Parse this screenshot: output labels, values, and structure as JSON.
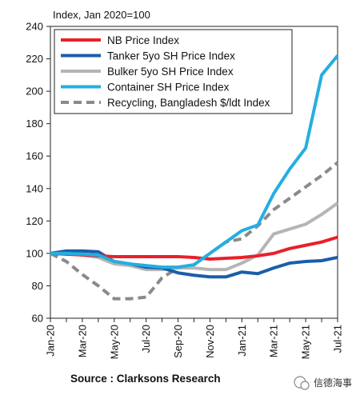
{
  "chart_data": {
    "type": "line",
    "ylabel": "Index, Jan 2020=100",
    "ylim": [
      60,
      240
    ],
    "yticks": [
      60,
      80,
      100,
      120,
      140,
      160,
      180,
      200,
      220,
      240
    ],
    "xlabels": [
      "Jan-20",
      "Mar-20",
      "May-20",
      "Jul-20",
      "Sep-20",
      "Nov-20",
      "Jan-21",
      "Mar-21",
      "May-21",
      "Jul-21"
    ],
    "x": [
      "Jan-20",
      "Feb-20",
      "Mar-20",
      "Apr-20",
      "May-20",
      "Jun-20",
      "Jul-20",
      "Aug-20",
      "Sep-20",
      "Oct-20",
      "Nov-20",
      "Dec-20",
      "Jan-21",
      "Feb-21",
      "Mar-21",
      "Apr-21",
      "May-21",
      "Jun-21",
      "Jul-21"
    ],
    "grid": false,
    "legend": "top",
    "series": [
      {
        "name": "NB Price Index",
        "color": "#e8202a",
        "dashed": false,
        "values": [
          100,
          99.5,
          99,
          98.5,
          98,
          98,
          98,
          98,
          98,
          97.5,
          96.5,
          97,
          97.5,
          98.5,
          100,
          103,
          105,
          107,
          110
        ]
      },
      {
        "name": "Tanker 5yo SH Price Index",
        "color": "#1a5ea8",
        "dashed": false,
        "values": [
          100,
          101.5,
          101.5,
          101,
          95,
          93.5,
          91.5,
          91,
          88,
          86.5,
          85.5,
          85.5,
          88.5,
          87.5,
          91,
          94,
          95,
          95.5,
          97.5
        ]
      },
      {
        "name": "Bulker 5yo SH Price Index",
        "color": "#b5b5b5",
        "dashed": false,
        "values": [
          100,
          100,
          99,
          97.5,
          93.5,
          92.5,
          90,
          90,
          91,
          91,
          90,
          90,
          94,
          99,
          112,
          115,
          118,
          124,
          131
        ]
      },
      {
        "name": "Container SH Price Index",
        "color": "#25aee0",
        "dashed": false,
        "values": [
          100,
          100,
          99.5,
          99,
          95,
          93.5,
          92.5,
          91.5,
          91.5,
          93,
          100,
          107,
          114,
          117.5,
          137,
          152,
          165,
          210,
          222
        ]
      },
      {
        "name": "Recycling, Bangladesh $/ldt Index",
        "color": "#8a8a8a",
        "dashed": true,
        "values": [
          100,
          95,
          87,
          80,
          72,
          72,
          73,
          85,
          91,
          93,
          100,
          107,
          109,
          117,
          127,
          134,
          141,
          148,
          156
        ]
      }
    ]
  },
  "source": "Source : Clarksons Research",
  "watermark": "信德海事"
}
